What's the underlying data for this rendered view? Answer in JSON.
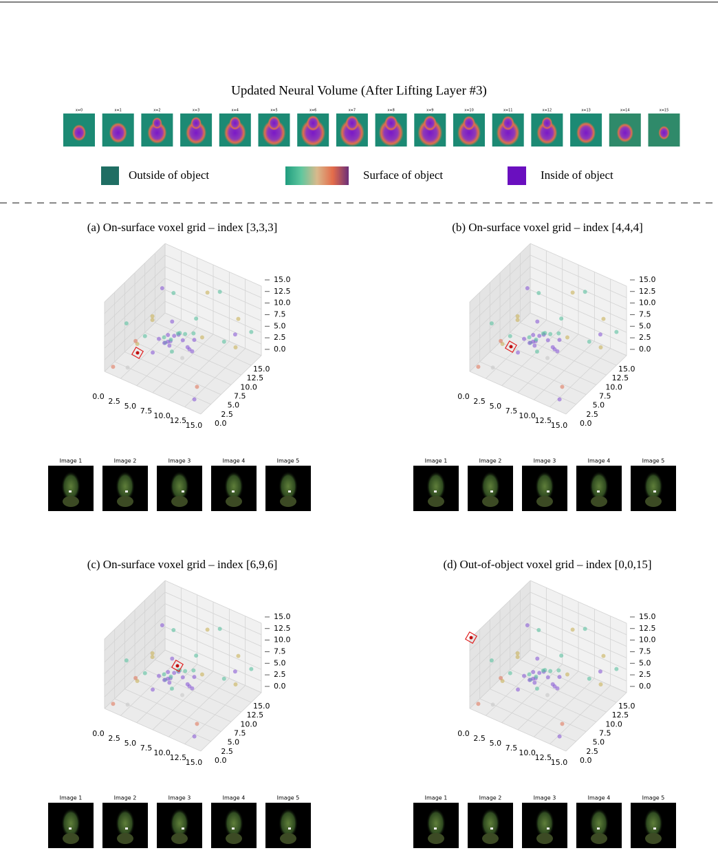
{
  "title": "Updated Neural Volume (After Lifting Layer #3)",
  "slices": [
    "x=0",
    "x=1",
    "x=2",
    "x=3",
    "x=4",
    "x=5",
    "x=6",
    "x=7",
    "x=8",
    "x=9",
    "x=10",
    "x=11",
    "x=12",
    "x=13",
    "x=14",
    "x=15"
  ],
  "legend": [
    "Outside of object",
    "Surface of object",
    "Inside of object"
  ],
  "ticks": [
    {
      "value": 0,
      "label": "0.0"
    },
    {
      "value": 2.5,
      "label": "2.5"
    },
    {
      "value": 5,
      "label": "5.0"
    },
    {
      "value": 7.5,
      "label": "7.5"
    },
    {
      "value": 10,
      "label": "10.0"
    },
    {
      "value": 12.5,
      "label": "12.5"
    },
    {
      "value": 15,
      "label": "15.0"
    }
  ],
  "image_labels": [
    "Image 1",
    "Image 2",
    "Image 3",
    "Image 4",
    "Image 5"
  ],
  "panels": [
    {
      "title": "(a) On-surface voxel grid – index [3,3,3]"
    },
    {
      "title": "(b) On-surface voxel grid – index [4,4,4]"
    },
    {
      "title": "(c) On-surface voxel grid – index [6,9,6]"
    },
    {
      "title": "(d) Out-of-object voxel grid – index [0,0,15]"
    }
  ]
}
